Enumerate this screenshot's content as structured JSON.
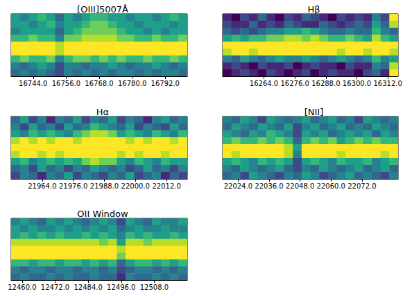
{
  "chart_data": [
    {
      "type": "heatmap",
      "title": "[OIII]5007Å",
      "color": "viridis",
      "tick_labels": "x",
      "xlim": [
        16736,
        16800
      ],
      "xticks": [
        {
          "value": 16744,
          "label": "16744.0"
        },
        {
          "value": 16756,
          "label": "16756.0"
        },
        {
          "value": 16768,
          "label": "16768.0"
        },
        {
          "value": 16780,
          "label": "16780.0"
        },
        {
          "value": 16792,
          "label": "16792.0"
        }
      ],
      "ylim": [
        0,
        9
      ],
      "zlim": [
        0,
        9
      ],
      "x": [
        16737.6,
        16740.8,
        16744.0,
        16747.2,
        16750.4,
        16753.6,
        16756.8,
        16760.0,
        16763.2,
        16766.4,
        16769.6,
        16772.8,
        16776.0,
        16779.2,
        16782.4,
        16785.6,
        16788.8,
        16792.0,
        16795.2,
        16798.4
      ],
      "y": [
        0.5,
        1.5,
        2.5,
        3.5,
        4.5,
        5.5,
        6.5,
        7.5,
        8.5
      ],
      "values": [
        [
          5,
          4,
          5,
          6,
          5,
          3,
          5,
          4,
          5,
          6,
          6,
          5,
          5,
          4,
          5,
          5,
          4,
          5,
          6,
          5
        ],
        [
          5,
          5,
          4,
          5,
          6,
          4,
          5,
          5,
          6,
          7,
          7,
          6,
          5,
          5,
          4,
          5,
          5,
          5,
          4,
          5
        ],
        [
          4,
          5,
          5,
          5,
          5,
          3,
          5,
          6,
          7,
          7,
          7,
          7,
          6,
          5,
          5,
          4,
          5,
          4,
          5,
          5
        ],
        [
          6,
          6,
          7,
          6,
          6,
          4,
          7,
          7,
          8,
          8,
          8,
          8,
          7,
          7,
          6,
          6,
          7,
          6,
          6,
          7
        ],
        [
          9,
          9,
          9,
          9,
          9,
          8,
          9,
          9,
          9,
          9,
          9,
          9,
          9,
          9,
          9,
          9,
          9,
          9,
          9,
          9
        ],
        [
          9,
          9,
          9,
          9,
          9,
          8,
          9,
          9,
          9,
          9,
          9,
          9,
          9,
          9,
          9,
          9,
          9,
          9,
          9,
          9
        ],
        [
          6,
          7,
          6,
          6,
          7,
          4,
          6,
          7,
          7,
          6,
          7,
          6,
          7,
          6,
          6,
          7,
          6,
          6,
          7,
          6
        ],
        [
          4,
          3,
          4,
          5,
          4,
          2,
          4,
          4,
          3,
          4,
          4,
          5,
          4,
          3,
          4,
          4,
          5,
          4,
          3,
          4
        ],
        [
          3,
          4,
          3,
          4,
          3,
          2,
          4,
          3,
          4,
          3,
          4,
          3,
          4,
          4,
          3,
          4,
          3,
          4,
          4,
          3
        ]
      ]
    },
    {
      "type": "heatmap",
      "title": "Hβ",
      "color": "viridis",
      "tick_labels": "x",
      "xlim": [
        16248,
        16316
      ],
      "xticks": [
        {
          "value": 16264,
          "label": "16264.0"
        },
        {
          "value": 16276,
          "label": "16276.0"
        },
        {
          "value": 16288,
          "label": "16288.0"
        },
        {
          "value": 16300,
          "label": "16300.0"
        },
        {
          "value": 16312,
          "label": "16312.0"
        }
      ],
      "ylim": [
        0,
        9
      ],
      "zlim": [
        0,
        9
      ],
      "x": [
        16249.7,
        16253.1,
        16256.5,
        16259.9,
        16263.3,
        16266.7,
        16270.1,
        16273.5,
        16276.9,
        16280.3,
        16283.7,
        16287.1,
        16290.5,
        16293.9,
        16297.3,
        16300.7,
        16304.1,
        16307.5,
        16310.9,
        16314.3
      ],
      "y": [
        0.5,
        1.5,
        2.5,
        3.5,
        4.5,
        5.5,
        6.5,
        7.5,
        8.5
      ],
      "values": [
        [
          1,
          0,
          2,
          1,
          3,
          1,
          0,
          2,
          1,
          3,
          2,
          1,
          0,
          2,
          1,
          2,
          1,
          4,
          2,
          9
        ],
        [
          2,
          1,
          1,
          3,
          1,
          2,
          1,
          3,
          2,
          1,
          1,
          3,
          2,
          1,
          2,
          3,
          2,
          5,
          3,
          8
        ],
        [
          3,
          2,
          3,
          2,
          3,
          4,
          4,
          5,
          5,
          6,
          5,
          4,
          3,
          3,
          4,
          3,
          3,
          6,
          4,
          3
        ],
        [
          5,
          6,
          5,
          6,
          6,
          7,
          7,
          8,
          8,
          7,
          8,
          7,
          6,
          6,
          7,
          6,
          5,
          8,
          6,
          5
        ],
        [
          9,
          9,
          9,
          9,
          9,
          9,
          9,
          9,
          9,
          9,
          9,
          9,
          9,
          9,
          9,
          9,
          9,
          9,
          9,
          9
        ],
        [
          8,
          9,
          9,
          8,
          9,
          9,
          9,
          9,
          9,
          9,
          9,
          9,
          9,
          8,
          9,
          9,
          8,
          9,
          9,
          8
        ],
        [
          4,
          3,
          5,
          4,
          3,
          4,
          5,
          4,
          4,
          5,
          4,
          3,
          4,
          5,
          4,
          3,
          4,
          6,
          4,
          5
        ],
        [
          1,
          2,
          1,
          0,
          2,
          1,
          1,
          2,
          0,
          1,
          2,
          1,
          1,
          0,
          2,
          1,
          1,
          4,
          3,
          8
        ],
        [
          0,
          1,
          2,
          1,
          0,
          2,
          1,
          0,
          1,
          2,
          0,
          1,
          2,
          1,
          1,
          0,
          2,
          3,
          1,
          9
        ]
      ]
    },
    {
      "type": "heatmap",
      "title": "Hα",
      "color": "viridis",
      "tick_labels": "x",
      "xlim": [
        21952,
        22020
      ],
      "xticks": [
        {
          "value": 21964,
          "label": "21964.0"
        },
        {
          "value": 21976,
          "label": "21976.0"
        },
        {
          "value": 21988,
          "label": "21988.0"
        },
        {
          "value": 22000,
          "label": "22000.0"
        },
        {
          "value": 22012,
          "label": "22012.0"
        }
      ],
      "ylim": [
        0,
        9
      ],
      "zlim": [
        0,
        9
      ],
      "x": [
        21953.7,
        21957.1,
        21960.5,
        21963.9,
        21967.3,
        21970.7,
        21974.1,
        21977.5,
        21980.9,
        21984.3,
        21987.7,
        21991.1,
        21994.5,
        21997.9,
        22001.3,
        22004.7,
        22008.1,
        22011.5,
        22014.9,
        22018.3
      ],
      "y": [
        0.5,
        1.5,
        2.5,
        3.5,
        4.5,
        5.5,
        6.5,
        7.5,
        8.5
      ],
      "values": [
        [
          3,
          5,
          2,
          4,
          1,
          4,
          3,
          5,
          2,
          4,
          3,
          5,
          2,
          4,
          3,
          1,
          4,
          5,
          3,
          4
        ],
        [
          4,
          2,
          5,
          3,
          4,
          2,
          5,
          3,
          4,
          6,
          5,
          4,
          3,
          5,
          2,
          4,
          3,
          2,
          5,
          3
        ],
        [
          5,
          4,
          6,
          5,
          6,
          5,
          4,
          6,
          7,
          8,
          8,
          7,
          5,
          6,
          5,
          4,
          6,
          5,
          4,
          6
        ],
        [
          8,
          9,
          8,
          9,
          8,
          9,
          9,
          8,
          9,
          9,
          9,
          9,
          9,
          8,
          9,
          8,
          9,
          9,
          8,
          9
        ],
        [
          9,
          9,
          9,
          9,
          9,
          9,
          9,
          9,
          9,
          9,
          9,
          9,
          9,
          9,
          9,
          9,
          9,
          9,
          9,
          9
        ],
        [
          8,
          9,
          9,
          8,
          9,
          8,
          9,
          9,
          9,
          9,
          9,
          9,
          8,
          9,
          8,
          9,
          9,
          8,
          9,
          9
        ],
        [
          5,
          6,
          4,
          5,
          6,
          5,
          6,
          5,
          7,
          8,
          7,
          7,
          5,
          4,
          6,
          5,
          4,
          6,
          5,
          5
        ],
        [
          3,
          4,
          2,
          5,
          3,
          4,
          2,
          4,
          3,
          5,
          4,
          3,
          4,
          2,
          3,
          5,
          3,
          4,
          2,
          4
        ],
        [
          2,
          4,
          3,
          1,
          4,
          3,
          5,
          2,
          4,
          3,
          2,
          4,
          3,
          5,
          2,
          3,
          4,
          1,
          3,
          2
        ]
      ]
    },
    {
      "type": "heatmap",
      "title": "[NII]",
      "color": "viridis",
      "tick_labels": "x",
      "xlim": [
        22018,
        22086
      ],
      "xticks": [
        {
          "value": 22024,
          "label": "22024.0"
        },
        {
          "value": 22036,
          "label": "22036.0"
        },
        {
          "value": 22048,
          "label": "22048.0"
        },
        {
          "value": 22060,
          "label": "22060.0"
        },
        {
          "value": 22072,
          "label": "22072.0"
        }
      ],
      "ylim": [
        0,
        9
      ],
      "zlim": [
        0,
        9
      ],
      "x": [
        22019.7,
        22023.1,
        22026.5,
        22029.9,
        22033.3,
        22036.7,
        22040.1,
        22043.5,
        22046.9,
        22050.3,
        22053.7,
        22057.1,
        22060.5,
        22063.9,
        22067.3,
        22070.7,
        22074.1,
        22077.5,
        22080.9,
        22084.3
      ],
      "y": [
        0.5,
        1.5,
        2.5,
        3.5,
        4.5,
        5.5,
        6.5,
        7.5,
        8.5
      ],
      "values": [
        [
          4,
          3,
          5,
          4,
          2,
          5,
          4,
          3,
          4,
          5,
          3,
          4,
          5,
          3,
          4,
          2,
          5,
          4,
          3,
          4
        ],
        [
          3,
          5,
          4,
          3,
          5,
          4,
          3,
          5,
          2,
          4,
          5,
          3,
          4,
          5,
          3,
          4,
          3,
          5,
          4,
          3
        ],
        [
          5,
          4,
          3,
          5,
          4,
          6,
          5,
          4,
          2,
          5,
          4,
          5,
          3,
          4,
          5,
          4,
          5,
          3,
          5,
          4
        ],
        [
          6,
          7,
          6,
          6,
          7,
          6,
          7,
          6,
          3,
          6,
          7,
          6,
          7,
          5,
          6,
          7,
          6,
          7,
          6,
          6
        ],
        [
          9,
          9,
          9,
          9,
          9,
          9,
          9,
          8,
          5,
          9,
          9,
          9,
          9,
          9,
          9,
          9,
          9,
          9,
          9,
          9
        ],
        [
          9,
          8,
          9,
          9,
          9,
          9,
          9,
          8,
          4,
          9,
          9,
          9,
          9,
          8,
          9,
          9,
          9,
          9,
          8,
          9
        ],
        [
          5,
          6,
          5,
          4,
          6,
          5,
          6,
          5,
          2,
          5,
          6,
          5,
          4,
          6,
          5,
          5,
          6,
          4,
          5,
          6
        ],
        [
          4,
          3,
          5,
          4,
          3,
          4,
          5,
          3,
          2,
          4,
          3,
          5,
          4,
          3,
          4,
          5,
          3,
          4,
          5,
          3
        ],
        [
          3,
          4,
          2,
          5,
          4,
          3,
          2,
          4,
          3,
          5,
          4,
          2,
          3,
          4,
          5,
          3,
          4,
          3,
          2,
          4
        ]
      ]
    },
    {
      "type": "heatmap",
      "title": "OII Window",
      "color": "viridis",
      "tick_labels": "x",
      "xlim": [
        12456,
        12520
      ],
      "xticks": [
        {
          "value": 12460,
          "label": "12460.0"
        },
        {
          "value": 12472,
          "label": "12472.0"
        },
        {
          "value": 12484,
          "label": "12484.0"
        },
        {
          "value": 12496,
          "label": "12496.0"
        },
        {
          "value": 12508,
          "label": "12508.0"
        }
      ],
      "ylim": [
        0,
        9
      ],
      "zlim": [
        0,
        9
      ],
      "x": [
        12457.6,
        12460.8,
        12464.0,
        12467.2,
        12470.4,
        12473.6,
        12476.8,
        12480.0,
        12483.2,
        12486.4,
        12489.6,
        12492.8,
        12496.0,
        12499.2,
        12502.4,
        12505.6,
        12508.8,
        12512.0,
        12515.2,
        12518.4
      ],
      "y": [
        0.5,
        1.5,
        2.5,
        3.5,
        4.5,
        5.5,
        6.5,
        7.5,
        8.5
      ],
      "values": [
        [
          4,
          5,
          4,
          3,
          5,
          4,
          5,
          4,
          3,
          4,
          5,
          4,
          2,
          5,
          4,
          3,
          5,
          4,
          4,
          5
        ],
        [
          5,
          4,
          5,
          4,
          4,
          5,
          4,
          5,
          4,
          5,
          4,
          5,
          3,
          4,
          5,
          4,
          4,
          5,
          4,
          4
        ],
        [
          5,
          6,
          5,
          6,
          5,
          6,
          5,
          5,
          6,
          5,
          6,
          5,
          4,
          6,
          5,
          6,
          5,
          5,
          6,
          5
        ],
        [
          8,
          8,
          8,
          8,
          8,
          8,
          8,
          8,
          8,
          8,
          7,
          8,
          5,
          8,
          8,
          7,
          8,
          8,
          8,
          8
        ],
        [
          9,
          9,
          9,
          9,
          9,
          9,
          9,
          9,
          9,
          9,
          9,
          9,
          8,
          9,
          9,
          9,
          9,
          9,
          9,
          9
        ],
        [
          9,
          9,
          9,
          9,
          9,
          9,
          9,
          9,
          9,
          9,
          9,
          9,
          7,
          9,
          9,
          9,
          9,
          9,
          9,
          9
        ],
        [
          6,
          6,
          5,
          6,
          6,
          5,
          6,
          6,
          5,
          6,
          5,
          6,
          3,
          5,
          6,
          6,
          5,
          6,
          5,
          6
        ],
        [
          4,
          3,
          4,
          4,
          3,
          4,
          4,
          3,
          4,
          4,
          3,
          4,
          2,
          3,
          4,
          4,
          3,
          4,
          3,
          4
        ],
        [
          3,
          4,
          3,
          3,
          4,
          3,
          4,
          3,
          3,
          4,
          3,
          3,
          1,
          4,
          3,
          3,
          4,
          3,
          4,
          3
        ]
      ]
    }
  ]
}
